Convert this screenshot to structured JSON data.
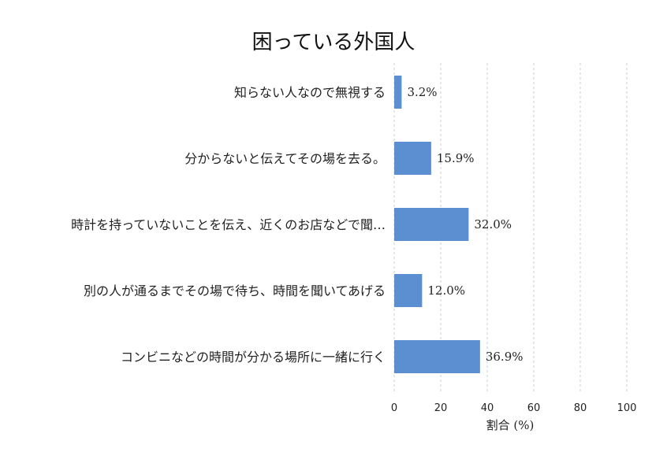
{
  "chart_data": {
    "type": "bar",
    "orientation": "horizontal",
    "title": "困っている外国人",
    "xlabel": "割合 (%)",
    "ylabel": "",
    "xlim": [
      0,
      100
    ],
    "xticks": [
      "0",
      "20",
      "40",
      "60",
      "80",
      "100"
    ],
    "grid": "vertical dashed",
    "categories": [
      "知らない人なので無視する",
      "分からないと伝えてその場を去る。",
      "時計を持っていないことを伝え、近くのお店などで聞…",
      "別の人が通るまでその場で待ち、時間を聞いてあげる",
      "コンビニなどの時間が分かる場所に一緒に行く"
    ],
    "values": [
      3.2,
      15.9,
      32.0,
      12.0,
      36.9
    ],
    "value_labels": [
      "3.2%",
      "15.9%",
      "32.0%",
      "12.0%",
      "36.9%"
    ],
    "bar_color": "#5b8fd1"
  }
}
